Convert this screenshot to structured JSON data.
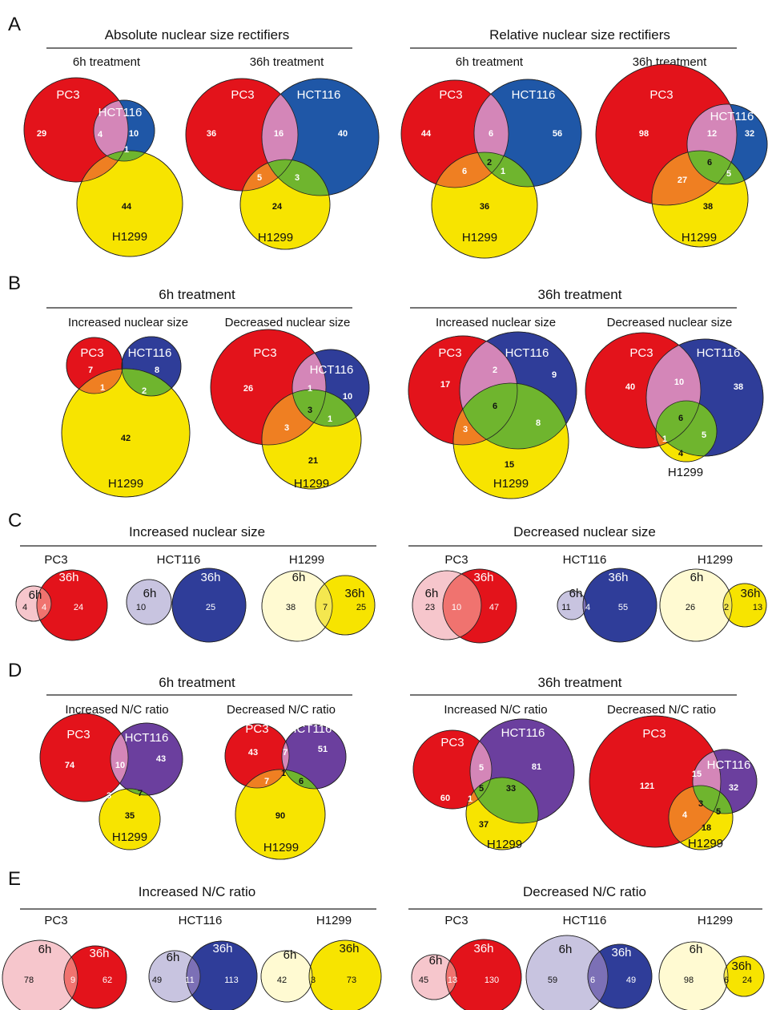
{
  "colors": {
    "pc3": "#e3131b",
    "hct_a": "#1f57a7",
    "hct_b": "#2f3d99",
    "hct_c": "#6b3f9e",
    "h1299": "#f7e400",
    "pink": "#d486b8",
    "orange": "#ef7f22",
    "green": "#6fb52e"
  },
  "panels": {
    "A": {
      "letter": "A",
      "left_title": "Absolute nuclear size rectifiers",
      "right_title": "Relative nuclear size rectifiers",
      "v1": {
        "sub": "6h treatment",
        "l1": "PC3",
        "l2": "HCT116",
        "l3": "H1299",
        "n": [
          "29",
          "10",
          "44",
          "4",
          "1"
        ]
      },
      "v2": {
        "sub": "36h treatment",
        "l1": "PC3",
        "l2": "HCT116",
        "l3": "H1299",
        "n": [
          "36",
          "40",
          "24",
          "16",
          "5",
          "3"
        ]
      },
      "v3": {
        "sub": "6h treatment",
        "l1": "PC3",
        "l2": "HCT116",
        "l3": "H1299",
        "n": [
          "44",
          "56",
          "36",
          "6",
          "6",
          "1",
          "2"
        ]
      },
      "v4": {
        "sub": "36h treatment",
        "l1": "PC3",
        "l2": "HCT116",
        "l3": "H1299",
        "n": [
          "98",
          "32",
          "38",
          "12",
          "27",
          "5",
          "6"
        ]
      }
    },
    "B": {
      "letter": "B",
      "left_title": "6h treatment",
      "right_title": "36h treatment",
      "v1": {
        "sub": "Increased nuclear size",
        "l1": "PC3",
        "l2": "HCT116",
        "l3": "H1299",
        "n": [
          "7",
          "8",
          "42",
          "1",
          "2"
        ]
      },
      "v2": {
        "sub": "Decreased nuclear size",
        "l1": "PC3",
        "l2": "HCT116",
        "l3": "H1299",
        "n": [
          "26",
          "10",
          "21",
          "1",
          "3",
          "1",
          "3"
        ]
      },
      "v3": {
        "sub": "Increased nuclear size",
        "l1": "PC3",
        "l2": "HCT116",
        "l3": "H1299",
        "n": [
          "17",
          "9",
          "15",
          "2",
          "3",
          "8",
          "6"
        ]
      },
      "v4": {
        "sub": "Decreased nuclear size",
        "l1": "PC3",
        "l2": "HCT116",
        "l3": "H1299",
        "n": [
          "40",
          "38",
          "4",
          "10",
          "1",
          "5",
          "6"
        ]
      }
    },
    "C": {
      "letter": "C",
      "left_title": "Increased nuclear size",
      "right_title": "Decreased nuclear size",
      "p": [
        {
          "name": "PC3",
          "a": "6h",
          "b": "36h",
          "n": [
            "4",
            "4",
            "24"
          ]
        },
        {
          "name": "HCT116",
          "a": "6h",
          "b": "36h",
          "n": [
            "10",
            "25"
          ]
        },
        {
          "name": "H1299",
          "a": "6h",
          "b": "36h",
          "n": [
            "38",
            "7",
            "25"
          ]
        },
        {
          "name": "PC3",
          "a": "6h",
          "b": "36h",
          "n": [
            "23",
            "10",
            "47"
          ]
        },
        {
          "name": "HCT116",
          "a": "6h",
          "b": "36h",
          "n": [
            "11",
            "4",
            "55"
          ]
        },
        {
          "name": "H1299",
          "a": "6h",
          "b": "36h",
          "n": [
            "26",
            "2",
            "13"
          ]
        }
      ]
    },
    "D": {
      "letter": "D",
      "left_title": "6h treatment",
      "right_title": "36h treatment",
      "v1": {
        "sub": "Increased N/C ratio",
        "l1": "PC3",
        "l2": "HCT116",
        "l3": "H1299",
        "n": [
          "74",
          "43",
          "35",
          "10",
          "3",
          "7"
        ]
      },
      "v2": {
        "sub": "Decreased N/C ratio",
        "l1": "PC3",
        "l2": "HCT116",
        "l3": "H1299",
        "n": [
          "43",
          "51",
          "90",
          "7",
          "7",
          "6",
          "1"
        ]
      },
      "v3": {
        "sub": "Increased N/C ratio",
        "l1": "PC3",
        "l2": "HCT116",
        "l3": "H1299",
        "n": [
          "60",
          "81",
          "37",
          "5",
          "1",
          "33",
          "5"
        ]
      },
      "v4": {
        "sub": "Decreased N/C ratio",
        "l1": "PC3",
        "l2": "HCT116",
        "l3": "H1299",
        "n": [
          "121",
          "32",
          "18",
          "15",
          "4",
          "5",
          "3"
        ]
      }
    },
    "E": {
      "letter": "E",
      "left_title": "Increased N/C ratio",
      "right_title": "Decreased N/C ratio",
      "p": [
        {
          "name": "PC3",
          "a": "6h",
          "b": "36h",
          "n": [
            "78",
            "9",
            "62"
          ]
        },
        {
          "name": "HCT116",
          "a": "6h",
          "b": "36h",
          "n": [
            "49",
            "11",
            "113"
          ]
        },
        {
          "name": "H1299",
          "a": "6h",
          "b": "36h",
          "n": [
            "42",
            "3",
            "73"
          ]
        },
        {
          "name": "PC3",
          "a": "6h",
          "b": "36h",
          "n": [
            "45",
            "13",
            "130"
          ]
        },
        {
          "name": "HCT116",
          "a": "6h",
          "b": "36h",
          "n": [
            "59",
            "6",
            "49"
          ]
        },
        {
          "name": "H1299",
          "a": "6h",
          "b": "36h",
          "n": [
            "98",
            "6",
            "24"
          ]
        }
      ]
    }
  }
}
